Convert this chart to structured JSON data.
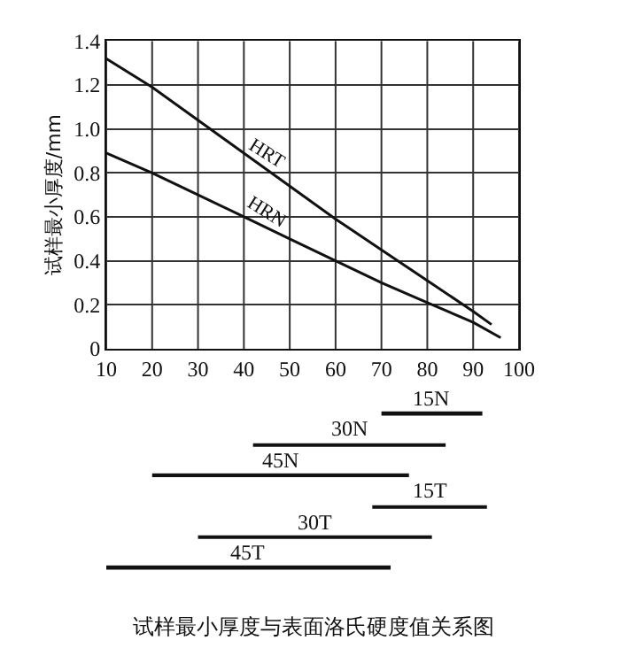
{
  "chart_data": [
    {
      "type": "line",
      "ylabel": "试样最小厚度/mm",
      "xlim": [
        10,
        100
      ],
      "xticks": [
        10,
        20,
        30,
        40,
        50,
        60,
        70,
        80,
        90,
        100
      ],
      "ylim": [
        0,
        1.4
      ],
      "yticks": [
        0,
        0.2,
        0.4,
        0.6,
        0.8,
        {
          "value": 1.0,
          "label": "1.0"
        },
        1.2,
        1.4
      ],
      "grid": true,
      "legend": false,
      "marker": "none",
      "line_style": "solid",
      "series": [
        {
          "name": "HRT",
          "color": "#111111",
          "x": [
            10,
            20,
            30,
            40,
            50,
            60,
            70,
            80,
            90,
            94
          ],
          "values": [
            1.32,
            1.19,
            1.04,
            0.89,
            0.74,
            0.59,
            0.45,
            0.31,
            0.17,
            0.11
          ]
        },
        {
          "name": "HRN",
          "color": "#111111",
          "x": [
            10,
            20,
            30,
            40,
            50,
            60,
            70,
            80,
            90,
            96
          ],
          "values": [
            0.89,
            0.8,
            0.7,
            0.6,
            0.5,
            0.4,
            0.3,
            0.21,
            0.12,
            0.05
          ]
        }
      ]
    },
    {
      "type": "bar",
      "orientation": "horizontal",
      "xlim": [
        10,
        100
      ],
      "tick_labels": false,
      "color": "#111111",
      "categories": [
        "15N",
        "30N",
        "45N",
        "15T",
        "30T",
        "45T"
      ],
      "base": [
        70,
        42,
        20,
        68,
        30,
        10
      ],
      "values": [
        22,
        42,
        56,
        25,
        51,
        62
      ],
      "annotations": [
        "试样最小厚度与表面洛氏硬度值关系图"
      ]
    }
  ]
}
